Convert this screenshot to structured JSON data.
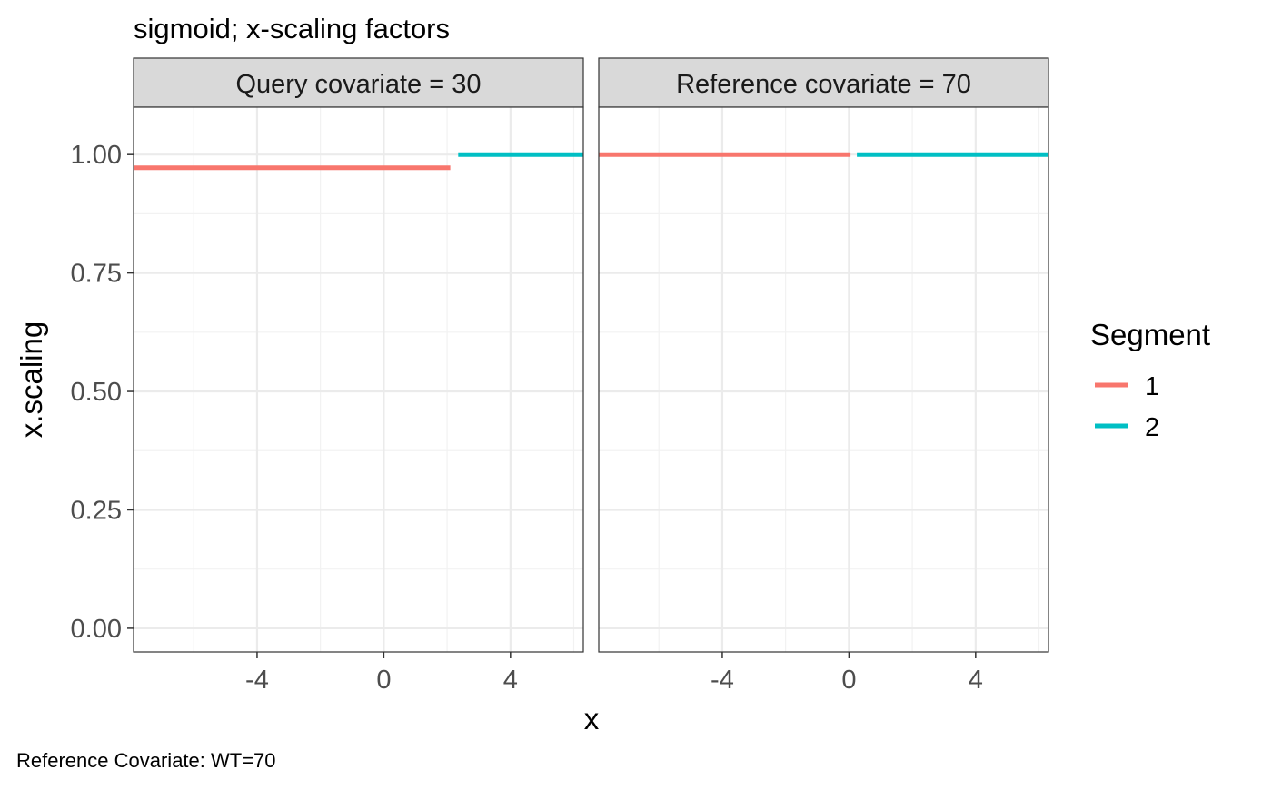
{
  "chart_data": {
    "type": "line",
    "title": "sigmoid; x-scaling factors",
    "xlabel": "x",
    "ylabel": "x.scaling",
    "caption": "Reference Covariate: WT=70",
    "xlim": [
      -7.9,
      6.3
    ],
    "ylim": [
      -0.05,
      1.1
    ],
    "x_ticks": [
      -4,
      0,
      4
    ],
    "x_tick_labels": [
      "-4",
      "0",
      "4"
    ],
    "y_ticks": [
      0,
      0.25,
      0.5,
      0.75,
      1
    ],
    "y_tick_labels": [
      "0.00",
      "0.25",
      "0.50",
      "0.75",
      "1.00"
    ],
    "grid": true,
    "legend": {
      "title": "Segment",
      "position": "right",
      "entries": [
        {
          "label": "1",
          "color": "#F8766D"
        },
        {
          "label": "2",
          "color": "#00BFC4"
        }
      ]
    },
    "facets": [
      {
        "label": "Query  covariate = 30",
        "series": [
          {
            "name": "1",
            "color": "#F8766D",
            "x": [
              -7.9,
              2.1
            ],
            "y": [
              0.972,
              0.972
            ]
          },
          {
            "name": "2",
            "color": "#00BFC4",
            "x": [
              2.35,
              6.3
            ],
            "y": [
              1.0,
              1.0
            ]
          }
        ]
      },
      {
        "label": "Reference  covariate = 70",
        "series": [
          {
            "name": "1",
            "color": "#F8766D",
            "x": [
              -7.9,
              0.05
            ],
            "y": [
              1.0,
              1.0
            ]
          },
          {
            "name": "2",
            "color": "#00BFC4",
            "x": [
              0.25,
              6.3
            ],
            "y": [
              1.0,
              1.0
            ]
          }
        ]
      }
    ]
  }
}
